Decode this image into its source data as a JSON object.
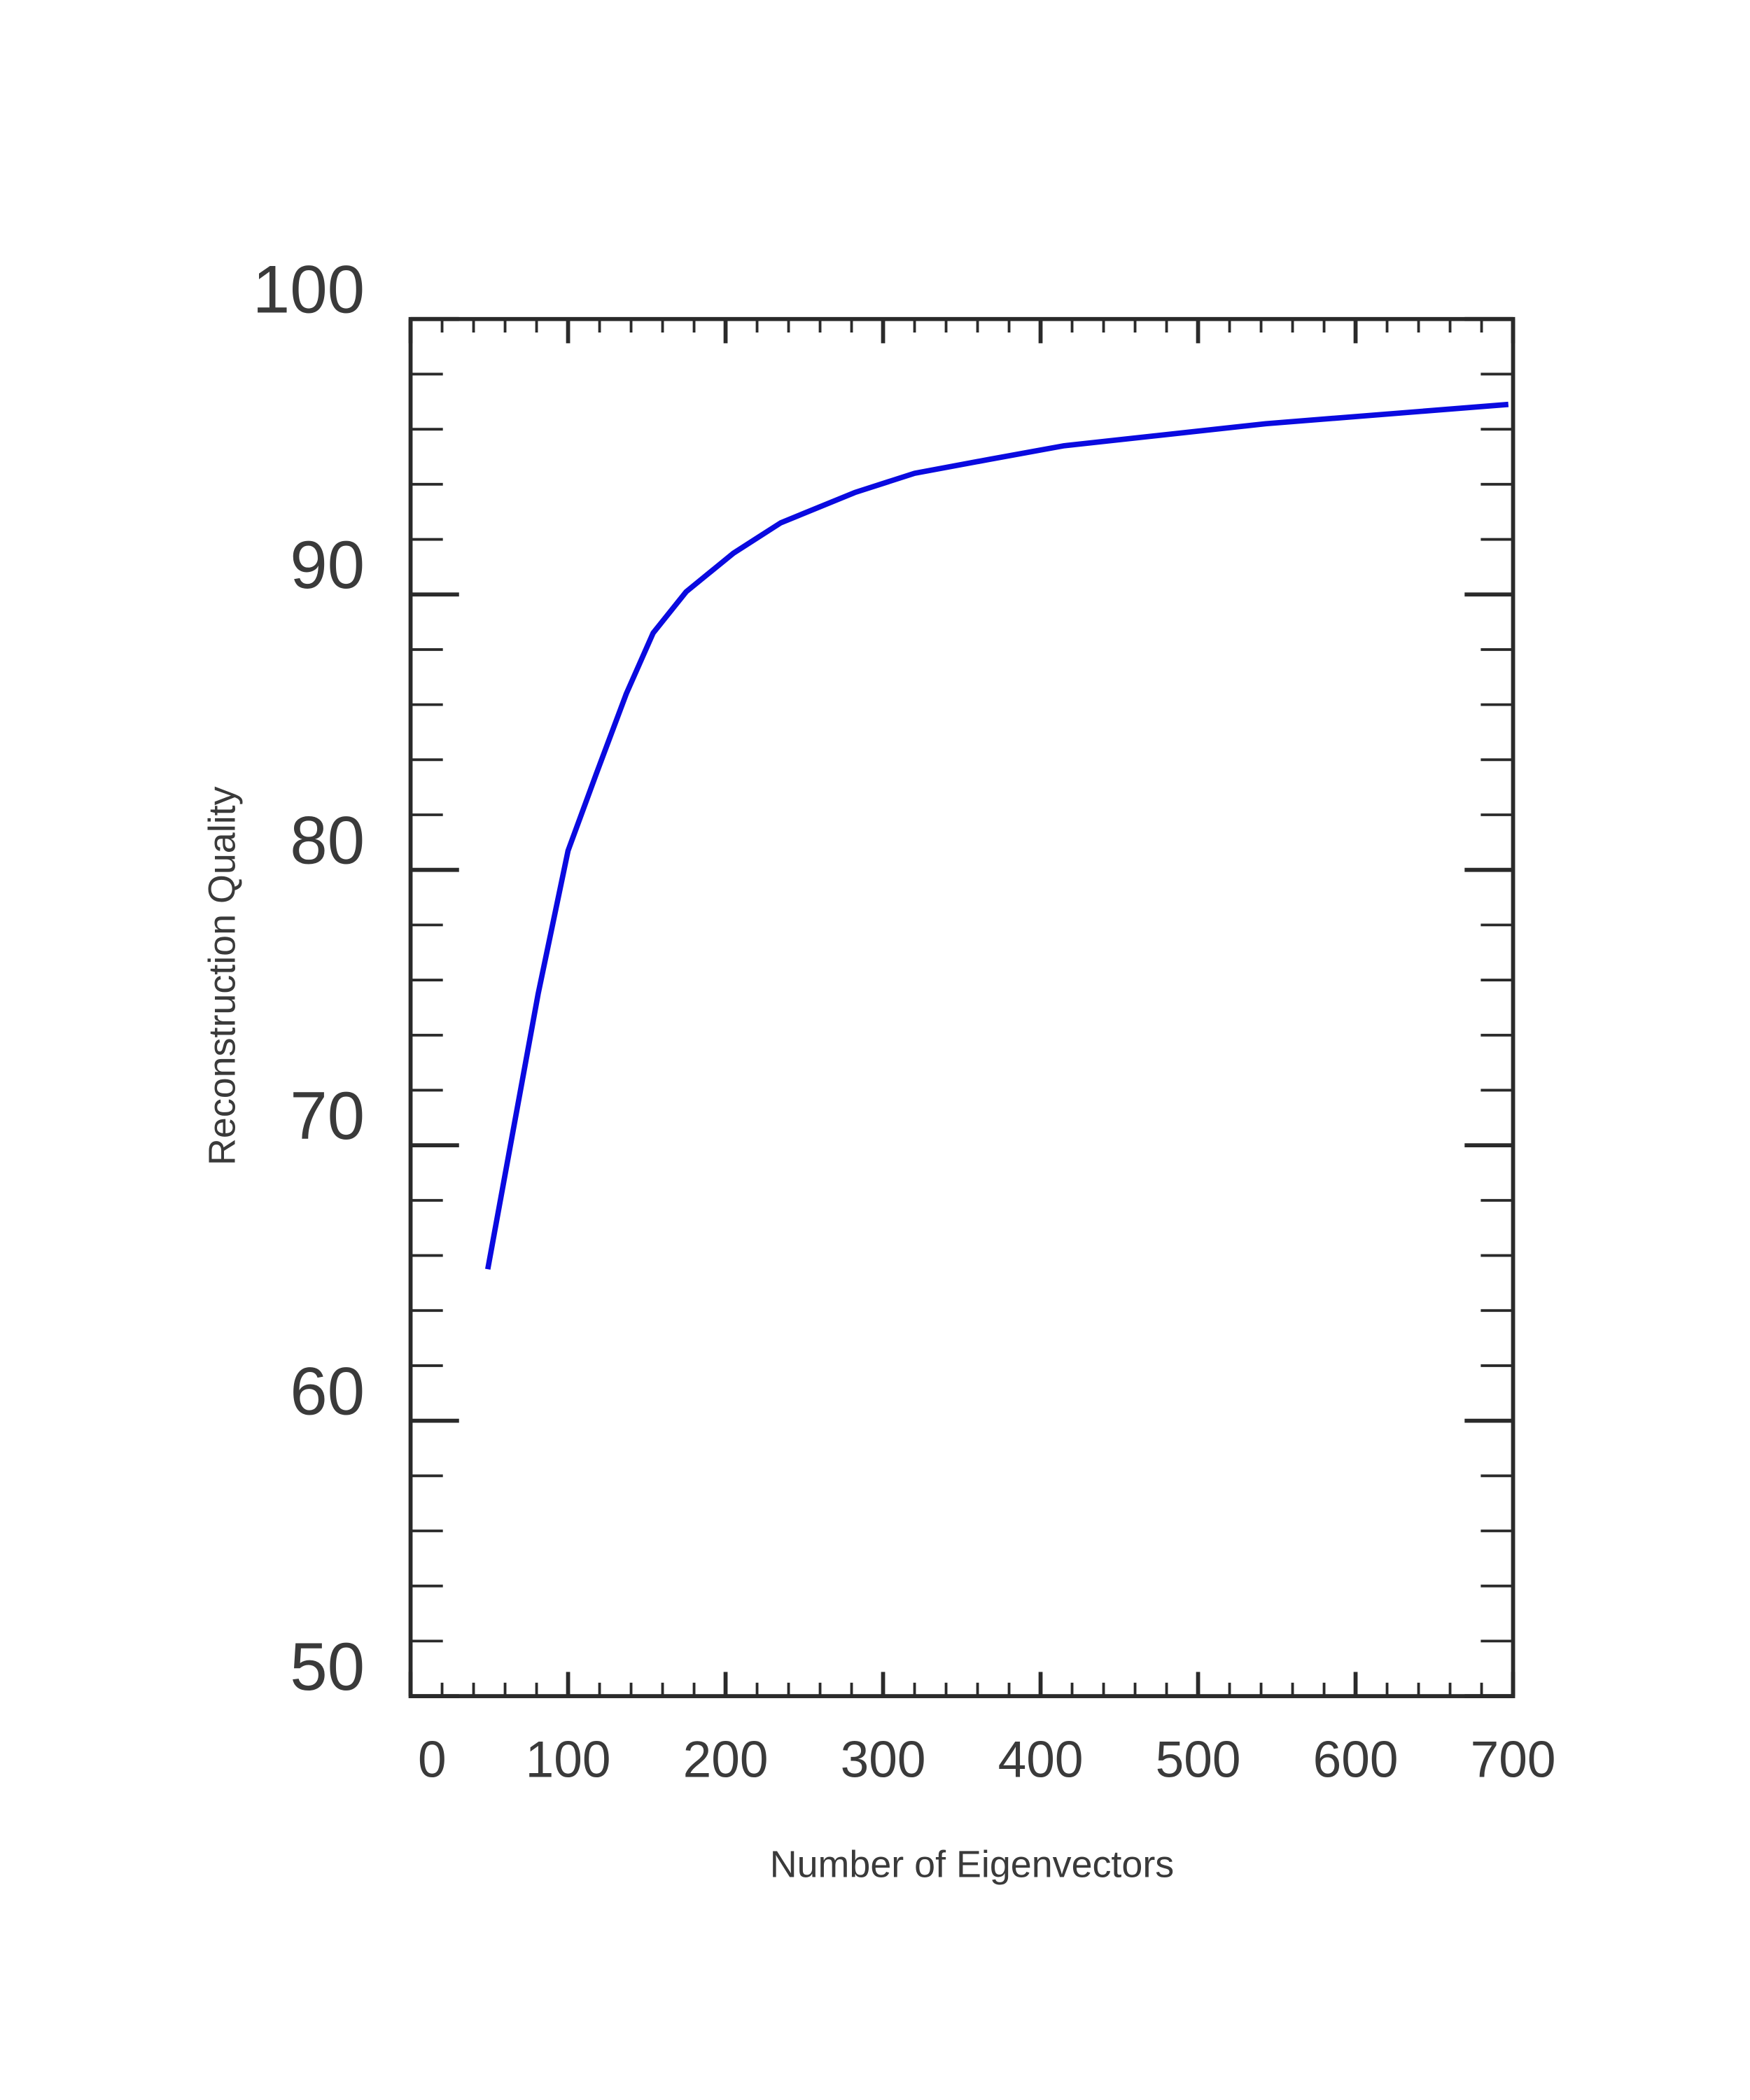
{
  "chart_data": {
    "type": "line",
    "x_label": "Number of Eigenvectors",
    "y_label": "Reconstruction Quality",
    "xlim": [
      0,
      700
    ],
    "ylim": [
      50,
      100
    ],
    "xticks": [
      0,
      100,
      200,
      300,
      400,
      500,
      600,
      700
    ],
    "yticks": [
      50,
      60,
      70,
      80,
      90,
      100
    ],
    "xticks_minor": [
      20,
      40,
      60,
      80,
      120,
      140,
      160,
      180,
      220,
      240,
      260,
      280,
      320,
      340,
      360,
      380,
      420,
      440,
      460,
      480,
      520,
      540,
      560,
      580,
      620,
      640,
      660,
      680
    ],
    "yticks_minor": [
      52,
      54,
      56,
      58,
      62,
      64,
      66,
      68,
      72,
      74,
      76,
      78,
      82,
      84,
      86,
      88,
      92,
      94,
      96,
      98
    ],
    "series": [
      {
        "color": "#0a0ae0",
        "x": [
          49,
          81,
          100,
          118,
          137,
          154,
          175,
          205,
          235,
          282,
          320,
          367,
          415,
          543,
          697
        ],
        "values": [
          65.5,
          75.5,
          80.7,
          83.5,
          86.4,
          88.6,
          90.1,
          91.5,
          92.6,
          93.7,
          94.4,
          94.9,
          95.4,
          96.2,
          96.9
        ]
      }
    ]
  }
}
